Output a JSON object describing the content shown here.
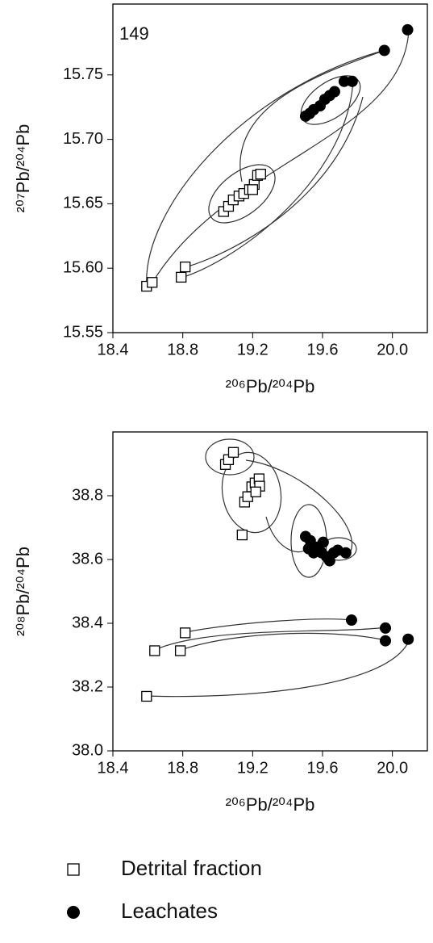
{
  "chart_data": [
    {
      "type": "scatter",
      "annotation": "149",
      "xlabel": "²⁰⁶Pb/²⁰⁴Pb",
      "ylabel": "²⁰⁷Pb/²⁰⁴Pb",
      "xlim": [
        18.4,
        20.2
      ],
      "ylim": [
        15.55,
        15.805
      ],
      "xticks": [
        18.4,
        18.8,
        19.2,
        19.6,
        {
          "value": 20.0,
          "label": "20.0"
        }
      ],
      "yticks": [
        15.55,
        {
          "value": 15.6,
          "label": "15.60"
        },
        15.65,
        {
          "value": 15.7,
          "label": "15.70"
        },
        15.75
      ],
      "series": [
        {
          "name": "Detrital fraction",
          "color": "#000000",
          "marker": "square-open",
          "x": [
            18.593,
            18.625,
            18.791,
            18.814,
            19.034,
            19.062,
            19.089,
            19.122,
            19.149,
            19.182,
            19.209,
            19.228,
            19.246,
            19.2
          ],
          "values": [
            15.586,
            15.589,
            15.593,
            15.601,
            15.644,
            15.648,
            15.653,
            15.656,
            15.658,
            15.661,
            15.665,
            15.672,
            15.673,
            15.661
          ]
        },
        {
          "name": "Leachates",
          "color": "#000000",
          "marker": "circle-filled",
          "x": [
            19.954,
            20.087,
            19.503,
            19.526,
            19.549,
            19.586,
            19.613,
            19.641,
            19.669,
            19.724,
            19.77
          ],
          "values": [
            15.769,
            15.785,
            15.718,
            15.72,
            15.723,
            15.726,
            15.731,
            15.734,
            15.737,
            15.745,
            15.745
          ]
        }
      ]
    },
    {
      "type": "scatter",
      "xlabel": "²⁰⁶Pb/²⁰⁴Pb",
      "ylabel": "²⁰⁸Pb/²⁰⁴Pb",
      "xlim": [
        18.4,
        20.2
      ],
      "ylim": [
        38.0,
        39.0
      ],
      "xticks": [
        18.4,
        18.8,
        19.2,
        19.6,
        {
          "value": 20.0,
          "label": "20.0"
        }
      ],
      "yticks": [
        {
          "value": 38.0,
          "label": "38.0"
        },
        38.2,
        38.4,
        38.6,
        38.8
      ],
      "series": [
        {
          "color": "#000000",
          "marker": "square-open",
          "x": [
            18.593,
            18.639,
            18.786,
            18.814,
            19.14,
            19.044,
            19.062,
            19.09,
            19.154,
            19.172,
            19.195,
            19.214,
            19.237,
            19.24,
            19.218
          ],
          "values": [
            38.171,
            38.314,
            38.314,
            38.37,
            38.677,
            38.898,
            38.913,
            38.936,
            38.78,
            38.797,
            38.828,
            38.84,
            38.853,
            38.83,
            38.812
          ]
        },
        {
          "color": "#000000",
          "marker": "circle-filled",
          "x": [
            19.766,
            19.96,
            19.96,
            20.09,
            19.503,
            19.53,
            19.52,
            19.549,
            19.572,
            19.595,
            19.623,
            19.641,
            19.664,
            19.687,
            19.733,
            19.604
          ],
          "values": [
            38.41,
            38.385,
            38.345,
            38.35,
            38.672,
            38.659,
            38.634,
            38.621,
            38.639,
            38.621,
            38.609,
            38.596,
            38.621,
            38.629,
            38.621,
            38.654
          ]
        }
      ]
    }
  ]
}
